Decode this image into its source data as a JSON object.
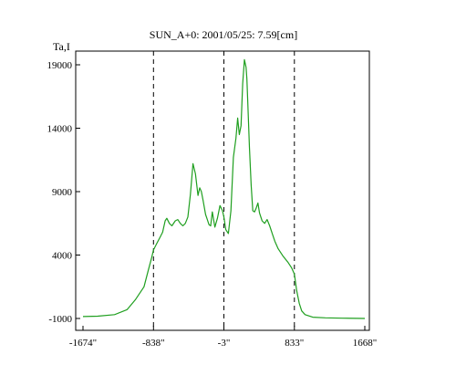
{
  "chart_data": {
    "type": "line",
    "title": "SUN_A+0: 2001/05/25: 7.59[cm]",
    "ylabel": "Ta,I",
    "xlabel": "",
    "xlim": [
      -1674,
      1668
    ],
    "ylim": [
      -1000,
      20200
    ],
    "xticks": [
      -1674,
      -838,
      -3,
      833,
      1668
    ],
    "xtick_labels": [
      "-1674\"",
      "-838\"",
      "-3\"",
      "833\"",
      "1668\""
    ],
    "yticks": [
      -1000,
      4000,
      9000,
      14000,
      19000
    ],
    "ytick_labels": [
      "-1000",
      "4000",
      "9000",
      "14000",
      "19000"
    ],
    "vlines": [
      -838,
      -3,
      833
    ],
    "grid": false,
    "line_color": "#1f9f1f",
    "series": [
      {
        "x": [
          -1674,
          -1500,
          -1300,
          -1150,
          -1050,
          -950,
          -900,
          -860,
          -838,
          -800,
          -760,
          -730,
          -700,
          -680,
          -650,
          -620,
          -580,
          -550,
          -520,
          -490,
          -460,
          -430,
          -400,
          -370,
          -340,
          -310,
          -290,
          -270,
          -250,
          -220,
          -200,
          -180,
          -160,
          -140,
          -110,
          -80,
          -50,
          -20,
          -3,
          20,
          50,
          80,
          110,
          140,
          160,
          180,
          200,
          220,
          240,
          260,
          270,
          280,
          300,
          320,
          340,
          360,
          380,
          400,
          420,
          450,
          480,
          510,
          540,
          570,
          600,
          640,
          700,
          760,
          800,
          833,
          860,
          890,
          920,
          960,
          1050,
          1200,
          1400,
          1668
        ],
        "y": [
          -850,
          -820,
          -700,
          -300,
          500,
          1500,
          2800,
          3800,
          4400,
          4900,
          5400,
          5800,
          6700,
          6900,
          6500,
          6300,
          6700,
          6800,
          6500,
          6300,
          6500,
          7000,
          8800,
          11200,
          10400,
          8700,
          9300,
          9000,
          8300,
          7200,
          6800,
          6400,
          6300,
          7400,
          6200,
          6900,
          7900,
          7500,
          7000,
          6000,
          5700,
          7500,
          11700,
          13200,
          14800,
          13500,
          14200,
          17500,
          19400,
          18800,
          17900,
          16000,
          12500,
          9500,
          7500,
          7400,
          7700,
          8100,
          7300,
          6700,
          6500,
          6800,
          6300,
          5700,
          5100,
          4500,
          3900,
          3400,
          3000,
          2500,
          1200,
          200,
          -400,
          -700,
          -900,
          -950,
          -980,
          -1000
        ]
      }
    ]
  }
}
